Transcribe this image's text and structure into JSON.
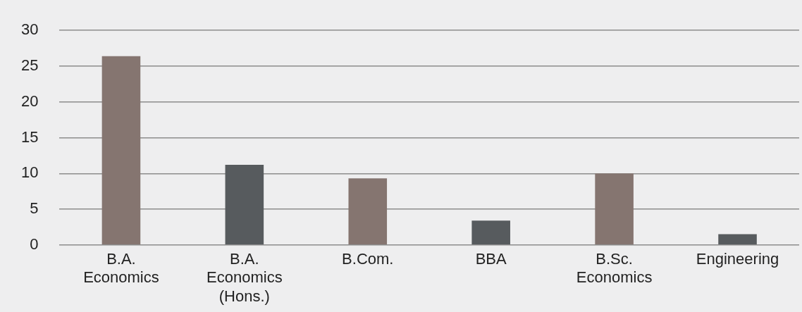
{
  "chart_data": {
    "type": "bar",
    "categories": [
      "B.A. Economics",
      "B.A. Economics (Hons.)",
      "B.Com.",
      "BBA",
      "B.Sc. Economics",
      "Engineering"
    ],
    "values": [
      26.4,
      11.2,
      9.3,
      3.4,
      10.0,
      1.5
    ],
    "colors": [
      "#857570",
      "#575b5e",
      "#857570",
      "#575b5e",
      "#857570",
      "#575b5e"
    ],
    "ylim": [
      0,
      30
    ],
    "yticks": [
      0,
      5,
      10,
      15,
      20,
      25,
      30
    ],
    "grid": "y"
  }
}
